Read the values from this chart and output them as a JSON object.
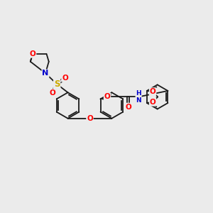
{
  "bg_color": "#ebebeb",
  "bond_color": "#1a1a1a",
  "colors": {
    "O": "#ff0000",
    "N": "#0000cc",
    "S": "#ccaa00",
    "H": "#2090a0",
    "C": "#1a1a1a"
  },
  "figsize": [
    3.0,
    3.0
  ],
  "dpi": 100,
  "lw": 1.3
}
